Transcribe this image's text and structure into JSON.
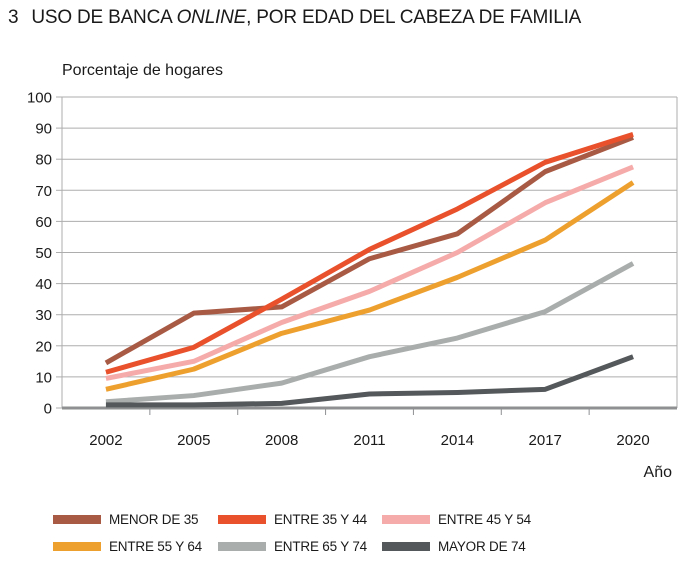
{
  "title": {
    "number": "3",
    "part1": "USO DE BANCA ",
    "italic": "ONLINE",
    "part2": ", POR EDAD DEL CABEZA DE FAMILIA"
  },
  "axes": {
    "y_title": "Porcentaje de hogares",
    "x_title": "Año"
  },
  "colors": {
    "text": "#1A1A1A",
    "grid": "#ADADAD",
    "axis": "#8E9092",
    "background": "#FFFFFF"
  },
  "chart_data": {
    "type": "line",
    "title": "Uso de banca online, por edad del cabeza de familia",
    "xlabel": "Año",
    "ylabel": "Porcentaje de hogares",
    "categories": [
      "2002",
      "2005",
      "2008",
      "2011",
      "2014",
      "2017",
      "2020"
    ],
    "ylim": [
      0,
      100
    ],
    "ytick_step": 10,
    "grid": true,
    "legend_position": "bottom",
    "series": [
      {
        "name": "MENOR DE 35",
        "color": "#A85A44",
        "values": [
          14.5,
          30.5,
          32.5,
          48,
          56,
          76,
          87
        ]
      },
      {
        "name": "ENTRE 35 Y 44",
        "color": "#E8512B",
        "values": [
          11.5,
          19.5,
          35,
          51,
          64,
          79,
          88
        ]
      },
      {
        "name": "ENTRE 45 Y 54",
        "color": "#F5ABA9",
        "values": [
          9.5,
          15,
          27.5,
          37.5,
          50,
          66,
          77.5
        ]
      },
      {
        "name": "ENTRE 55 Y 64",
        "color": "#EEA02F",
        "values": [
          6,
          12.5,
          24,
          31.5,
          42,
          54,
          72.5
        ]
      },
      {
        "name": "ENTRE 65 Y 74",
        "color": "#A9AEAC",
        "values": [
          2,
          4,
          8,
          16.5,
          22.5,
          31,
          46.5
        ]
      },
      {
        "name": "MAYOR DE 74",
        "color": "#54585A",
        "values": [
          1,
          1,
          1.5,
          4.5,
          5,
          6,
          16.5
        ]
      }
    ]
  }
}
